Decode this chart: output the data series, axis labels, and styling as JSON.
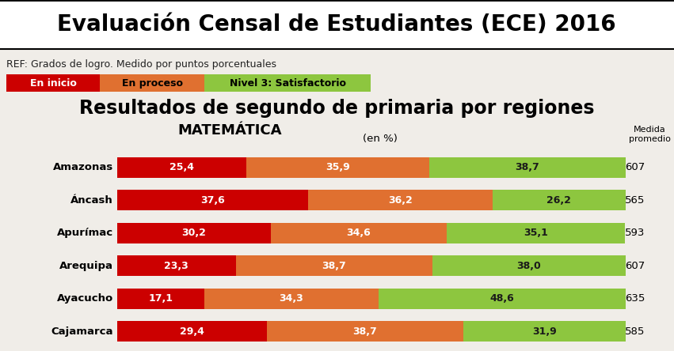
{
  "title": "Evaluación Censal de Estudiantes (ECE) 2016",
  "ref_text": "REF: Grados de logro. Medido por puntos porcentuales",
  "legend": [
    {
      "label": "En inicio",
      "color": "#cc0000"
    },
    {
      "label": "En proceso",
      "color": "#e07030"
    },
    {
      "label": "Nivel 3: Satisfactorio",
      "color": "#8dc63f"
    }
  ],
  "subtitle1": "Resultados de segundo de primaria por regiones",
  "subtitle2": "MATEMÁTICA",
  "unit_label": "(en %)",
  "medida_label": "Medida\npromedio",
  "regions": [
    "Amazonas",
    "Áncash",
    "Apurímac",
    "Arequipa",
    "Ayacucho",
    "Cajamarca"
  ],
  "en_inicio": [
    25.4,
    37.6,
    30.2,
    23.3,
    17.1,
    29.4
  ],
  "en_proceso": [
    35.9,
    36.2,
    34.6,
    38.7,
    34.3,
    38.7
  ],
  "satisfactorio": [
    38.7,
    26.2,
    35.1,
    38.0,
    48.6,
    31.9
  ],
  "medida": [
    607,
    565,
    593,
    607,
    635,
    585
  ],
  "color_inicio": "#cc0000",
  "color_proceso": "#e07030",
  "color_satisf": "#8dc63f",
  "color_bg": "#f0ede8",
  "bar_height": 0.62,
  "fontsize_title": 20,
  "fontsize_ref": 9,
  "fontsize_legend": 9,
  "fontsize_subtitle1": 17,
  "fontsize_subtitle2": 13,
  "fontsize_bar": 9,
  "fontsize_region": 9.5,
  "fontsize_medida": 9.5
}
